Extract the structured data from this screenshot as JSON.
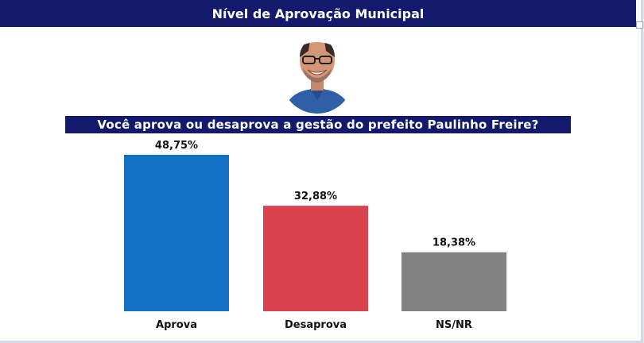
{
  "header": {
    "title": "Nível de Aprovação Municipal"
  },
  "question": "Você aprova ou desaprova a gestão do prefeito Paulinho Freire?",
  "colors": {
    "navy": "#131a6e",
    "background": "#ffffff"
  },
  "chart_data": {
    "type": "bar",
    "categories": [
      "Aprova",
      "Desaprova",
      "NS/NR"
    ],
    "values": [
      48.75,
      32.88,
      18.38
    ],
    "value_labels": [
      "48,75%",
      "32,88%",
      "18,38%"
    ],
    "colors": [
      "#1170c4",
      "#d8434d",
      "#828282"
    ],
    "ylim": [
      0,
      55
    ],
    "grid": false,
    "legend": "none"
  }
}
